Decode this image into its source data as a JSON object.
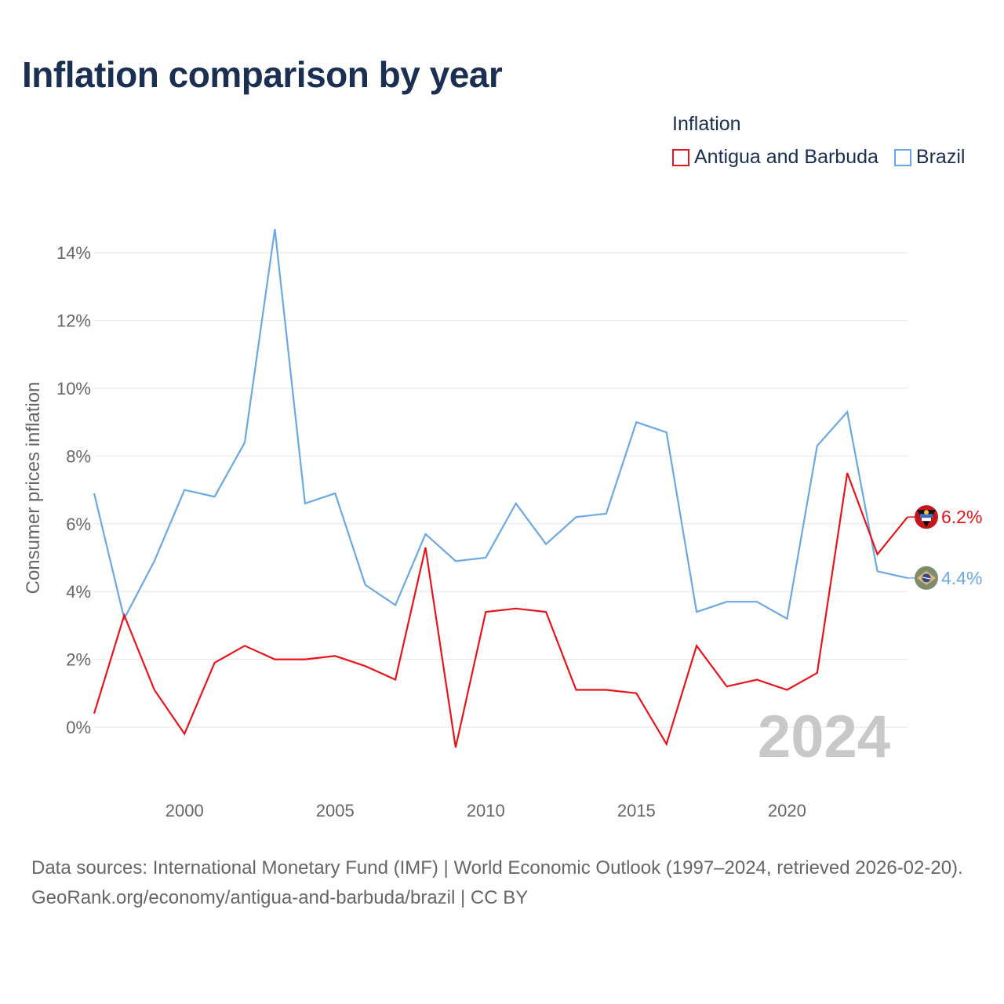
{
  "title": "Inflation comparison by year",
  "legend": {
    "title": "Inflation",
    "items": [
      {
        "label": "Antigua and Barbuda",
        "color": "#e8141b"
      },
      {
        "label": "Brazil",
        "color": "#6aa9e3"
      }
    ]
  },
  "chart_data": {
    "type": "line",
    "title": "Inflation comparison by year",
    "ylabel": "Consumer prices inflation",
    "xlabel": "",
    "x": [
      1997,
      1998,
      1999,
      2000,
      2001,
      2002,
      2003,
      2004,
      2005,
      2006,
      2007,
      2008,
      2009,
      2010,
      2011,
      2012,
      2013,
      2014,
      2015,
      2016,
      2017,
      2018,
      2019,
      2020,
      2021,
      2022,
      2023,
      2024
    ],
    "xlim": [
      1997,
      2024
    ],
    "ylim": [
      -2,
      15
    ],
    "x_ticks": [
      2000,
      2005,
      2010,
      2015,
      2020
    ],
    "x_tick_labels": [
      "2000",
      "2005",
      "2010",
      "2015",
      "2020"
    ],
    "y_ticks": [
      0,
      2,
      4,
      6,
      8,
      10,
      12,
      14
    ],
    "y_tick_labels": [
      "0%",
      "2%",
      "4%",
      "6%",
      "8%",
      "10%",
      "12%",
      "14%"
    ],
    "series": [
      {
        "name": "Antigua and Barbuda",
        "color": "#e8141b",
        "end_label": "6.2%",
        "values": [
          0.4,
          3.3,
          1.1,
          -0.2,
          1.9,
          2.4,
          2.0,
          2.0,
          2.1,
          1.8,
          1.4,
          5.3,
          -0.6,
          3.4,
          3.5,
          3.4,
          1.1,
          1.1,
          1.0,
          -0.5,
          2.4,
          1.2,
          1.4,
          1.1,
          1.6,
          7.5,
          5.1,
          6.2
        ]
      },
      {
        "name": "Brazil",
        "color": "#6aa9e3",
        "end_label": "4.4%",
        "values": [
          6.9,
          3.2,
          4.9,
          7.0,
          6.8,
          8.4,
          14.7,
          6.6,
          6.9,
          4.2,
          3.6,
          5.7,
          4.9,
          5.0,
          6.6,
          5.4,
          6.2,
          6.3,
          9.0,
          8.7,
          3.4,
          3.7,
          3.7,
          3.2,
          8.3,
          9.3,
          4.6,
          4.4
        ]
      }
    ],
    "grid": true,
    "legend_position": "top-right",
    "watermark_year": "2024"
  },
  "footer": {
    "sources": "Data sources: International Monetary Fund (IMF) | World Economic Outlook (1997–2024, retrieved 2026-02-20).",
    "credit": "GeoRank.org/economy/antigua-and-barbuda/brazil | CC BY"
  }
}
